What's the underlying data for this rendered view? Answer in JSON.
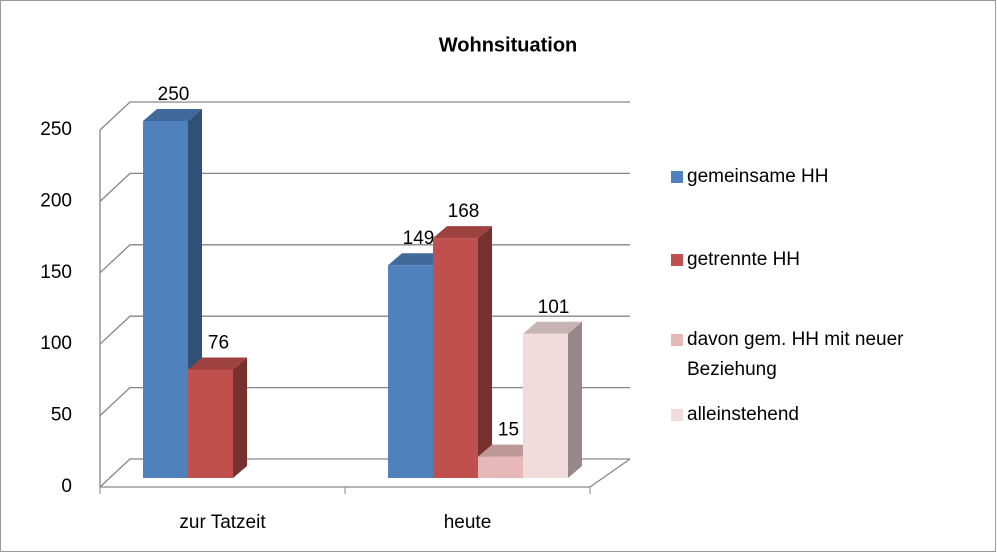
{
  "chart_data": {
    "type": "bar3d",
    "title": "Wohnsituation",
    "categories": [
      "zur Tatzeit",
      "heute"
    ],
    "series": [
      {
        "name": "gemeinsame HH",
        "color": "#4F81BD",
        "values": [
          250,
          149
        ]
      },
      {
        "name": "getrennte HH",
        "color": "#C0504D",
        "values": [
          76,
          168
        ]
      },
      {
        "name": "davon gem. HH mit neuer Beziehung",
        "color": "#E6B9B8",
        "values": [
          null,
          15
        ]
      },
      {
        "name": "alleinstehend",
        "color": "#F2DCDB",
        "values": [
          null,
          101
        ]
      }
    ],
    "ylim": [
      0,
      250
    ],
    "yticks": [
      0,
      50,
      100,
      150,
      200,
      250
    ],
    "grid": true,
    "legend": "right"
  }
}
